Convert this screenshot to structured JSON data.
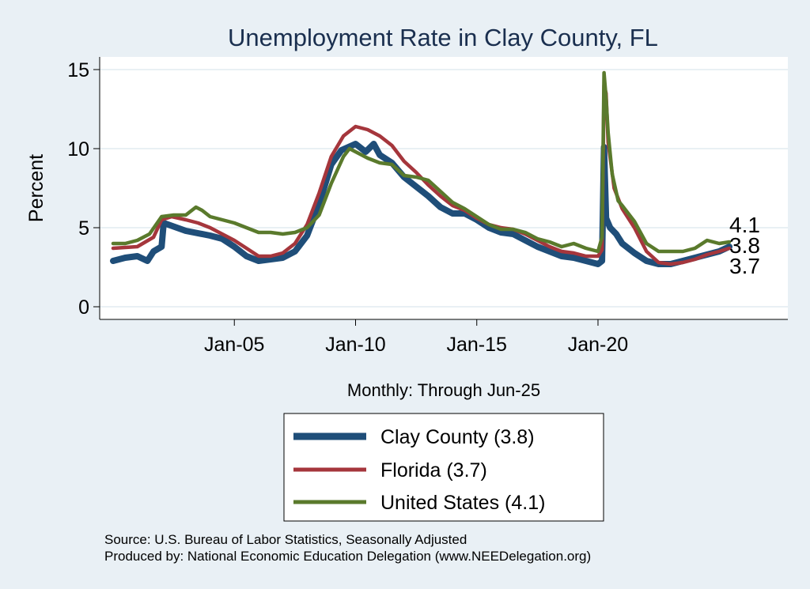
{
  "chart_data": {
    "type": "line",
    "title": "Unemployment Rate in Clay  County, FL",
    "ylabel": "Percent",
    "xnote": "Monthly: Through Jun-25",
    "ylim": [
      0,
      15
    ],
    "y_ticks": [
      0,
      5,
      10,
      15
    ],
    "x_ticks": [
      {
        "label": "Jan-05",
        "date": "2005-01"
      },
      {
        "label": "Jan-10",
        "date": "2010-01"
      },
      {
        "label": "Jan-15",
        "date": "2015-01"
      },
      {
        "label": "Jan-20",
        "date": "2020-01"
      }
    ],
    "x_range": [
      "2000-01",
      "2025-06"
    ],
    "grid": "horizontal",
    "legend_position": "bottom",
    "end_labels": [
      "4.1",
      "3.8",
      "3.7"
    ],
    "series": [
      {
        "name": "Clay  County (3.8)",
        "color": "#1f4e79",
        "points": [
          [
            "2000-01",
            2.9
          ],
          [
            "2000-07",
            3.1
          ],
          [
            "2001-01",
            3.2
          ],
          [
            "2001-06",
            2.9
          ],
          [
            "2001-09",
            3.5
          ],
          [
            "2002-01",
            3.8
          ],
          [
            "2002-02",
            5.3
          ],
          [
            "2003-01",
            4.8
          ],
          [
            "2004-01",
            4.5
          ],
          [
            "2004-07",
            4.3
          ],
          [
            "2005-01",
            3.8
          ],
          [
            "2005-07",
            3.2
          ],
          [
            "2006-01",
            2.9
          ],
          [
            "2006-07",
            3.0
          ],
          [
            "2007-01",
            3.1
          ],
          [
            "2007-07",
            3.5
          ],
          [
            "2008-01",
            4.5
          ],
          [
            "2008-07",
            6.5
          ],
          [
            "2009-01",
            9.0
          ],
          [
            "2009-06",
            9.9
          ],
          [
            "2010-01",
            10.3
          ],
          [
            "2010-06",
            9.8
          ],
          [
            "2010-10",
            10.3
          ],
          [
            "2011-01",
            9.6
          ],
          [
            "2011-07",
            9.1
          ],
          [
            "2012-01",
            8.2
          ],
          [
            "2012-07",
            7.6
          ],
          [
            "2013-01",
            7.0
          ],
          [
            "2013-07",
            6.3
          ],
          [
            "2014-01",
            5.9
          ],
          [
            "2014-07",
            5.9
          ],
          [
            "2015-01",
            5.5
          ],
          [
            "2015-07",
            5.0
          ],
          [
            "2016-01",
            4.7
          ],
          [
            "2016-07",
            4.6
          ],
          [
            "2017-01",
            4.2
          ],
          [
            "2017-07",
            3.8
          ],
          [
            "2018-01",
            3.5
          ],
          [
            "2018-07",
            3.2
          ],
          [
            "2019-01",
            3.1
          ],
          [
            "2019-07",
            2.9
          ],
          [
            "2020-01",
            2.7
          ],
          [
            "2020-03",
            2.9
          ],
          [
            "2020-04",
            10.1
          ],
          [
            "2020-05",
            5.6
          ],
          [
            "2020-07",
            5.0
          ],
          [
            "2020-10",
            4.6
          ],
          [
            "2021-01",
            4.0
          ],
          [
            "2021-07",
            3.4
          ],
          [
            "2022-01",
            2.9
          ],
          [
            "2022-07",
            2.7
          ],
          [
            "2023-01",
            2.7
          ],
          [
            "2023-07",
            2.9
          ],
          [
            "2024-01",
            3.1
          ],
          [
            "2024-07",
            3.3
          ],
          [
            "2025-01",
            3.5
          ],
          [
            "2025-06",
            3.8
          ]
        ]
      },
      {
        "name": "Florida (3.7)",
        "color": "#a5363c",
        "points": [
          [
            "2000-01",
            3.7
          ],
          [
            "2001-01",
            3.8
          ],
          [
            "2001-09",
            4.4
          ],
          [
            "2002-01",
            5.5
          ],
          [
            "2002-06",
            5.7
          ],
          [
            "2003-01",
            5.5
          ],
          [
            "2003-07",
            5.3
          ],
          [
            "2004-01",
            5.0
          ],
          [
            "2004-07",
            4.6
          ],
          [
            "2005-01",
            4.2
          ],
          [
            "2005-07",
            3.7
          ],
          [
            "2006-01",
            3.2
          ],
          [
            "2006-07",
            3.2
          ],
          [
            "2007-01",
            3.4
          ],
          [
            "2007-07",
            4.0
          ],
          [
            "2008-01",
            5.2
          ],
          [
            "2008-07",
            7.2
          ],
          [
            "2009-01",
            9.5
          ],
          [
            "2009-07",
            10.8
          ],
          [
            "2010-01",
            11.4
          ],
          [
            "2010-07",
            11.2
          ],
          [
            "2011-01",
            10.8
          ],
          [
            "2011-07",
            10.2
          ],
          [
            "2012-01",
            9.2
          ],
          [
            "2012-07",
            8.5
          ],
          [
            "2013-01",
            7.7
          ],
          [
            "2013-07",
            7.0
          ],
          [
            "2014-01",
            6.4
          ],
          [
            "2014-07",
            6.1
          ],
          [
            "2015-01",
            5.6
          ],
          [
            "2015-07",
            5.2
          ],
          [
            "2016-01",
            5.0
          ],
          [
            "2016-07",
            4.9
          ],
          [
            "2017-01",
            4.6
          ],
          [
            "2017-07",
            4.2
          ],
          [
            "2018-01",
            3.8
          ],
          [
            "2018-07",
            3.5
          ],
          [
            "2019-01",
            3.4
          ],
          [
            "2019-07",
            3.2
          ],
          [
            "2020-01",
            3.2
          ],
          [
            "2020-03",
            3.6
          ],
          [
            "2020-04",
            14.0
          ],
          [
            "2020-05",
            13.5
          ],
          [
            "2020-06",
            10.4
          ],
          [
            "2020-09",
            7.5
          ],
          [
            "2021-01",
            6.2
          ],
          [
            "2021-07",
            5.0
          ],
          [
            "2022-01",
            3.5
          ],
          [
            "2022-07",
            2.8
          ],
          [
            "2023-01",
            2.7
          ],
          [
            "2023-07",
            2.8
          ],
          [
            "2024-01",
            3.0
          ],
          [
            "2024-07",
            3.3
          ],
          [
            "2025-01",
            3.5
          ],
          [
            "2025-06",
            3.7
          ]
        ]
      },
      {
        "name": "United States (4.1)",
        "color": "#5a7a2c",
        "points": [
          [
            "2000-01",
            4.0
          ],
          [
            "2000-07",
            4.0
          ],
          [
            "2001-01",
            4.2
          ],
          [
            "2001-07",
            4.6
          ],
          [
            "2002-01",
            5.7
          ],
          [
            "2002-07",
            5.8
          ],
          [
            "2003-01",
            5.8
          ],
          [
            "2003-06",
            6.3
          ],
          [
            "2003-09",
            6.1
          ],
          [
            "2004-01",
            5.7
          ],
          [
            "2004-07",
            5.5
          ],
          [
            "2005-01",
            5.3
          ],
          [
            "2005-07",
            5.0
          ],
          [
            "2006-01",
            4.7
          ],
          [
            "2006-07",
            4.7
          ],
          [
            "2007-01",
            4.6
          ],
          [
            "2007-07",
            4.7
          ],
          [
            "2008-01",
            5.0
          ],
          [
            "2008-07",
            5.8
          ],
          [
            "2009-01",
            7.8
          ],
          [
            "2009-07",
            9.5
          ],
          [
            "2009-10",
            10.0
          ],
          [
            "2010-01",
            9.8
          ],
          [
            "2010-07",
            9.4
          ],
          [
            "2011-01",
            9.1
          ],
          [
            "2011-07",
            9.0
          ],
          [
            "2012-01",
            8.3
          ],
          [
            "2012-07",
            8.2
          ],
          [
            "2013-01",
            8.0
          ],
          [
            "2013-07",
            7.3
          ],
          [
            "2014-01",
            6.6
          ],
          [
            "2014-07",
            6.2
          ],
          [
            "2015-01",
            5.7
          ],
          [
            "2015-07",
            5.2
          ],
          [
            "2016-01",
            4.9
          ],
          [
            "2016-07",
            4.9
          ],
          [
            "2017-01",
            4.7
          ],
          [
            "2017-07",
            4.3
          ],
          [
            "2018-01",
            4.1
          ],
          [
            "2018-07",
            3.8
          ],
          [
            "2019-01",
            4.0
          ],
          [
            "2019-07",
            3.7
          ],
          [
            "2020-01",
            3.5
          ],
          [
            "2020-03",
            4.4
          ],
          [
            "2020-04",
            14.8
          ],
          [
            "2020-05",
            13.2
          ],
          [
            "2020-06",
            11.0
          ],
          [
            "2020-08",
            8.4
          ],
          [
            "2020-11",
            6.7
          ],
          [
            "2021-01",
            6.4
          ],
          [
            "2021-07",
            5.4
          ],
          [
            "2022-01",
            4.0
          ],
          [
            "2022-07",
            3.5
          ],
          [
            "2023-01",
            3.5
          ],
          [
            "2023-07",
            3.5
          ],
          [
            "2024-01",
            3.7
          ],
          [
            "2024-07",
            4.2
          ],
          [
            "2025-01",
            4.0
          ],
          [
            "2025-06",
            4.1
          ]
        ]
      }
    ]
  },
  "source_lines": [
    "Source: U.S. Bureau of Labor Statistics, Seasonally Adjusted",
    "Produced by: National Economic Education Delegation (www.NEEDelegation.org)"
  ]
}
